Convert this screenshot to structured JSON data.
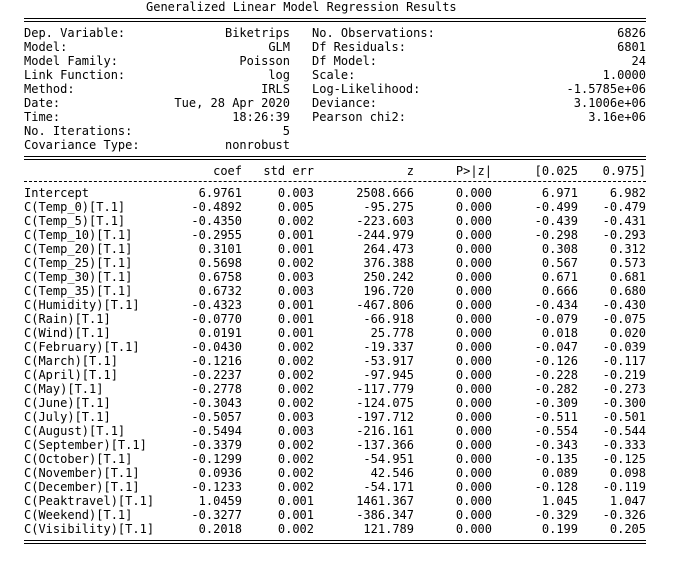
{
  "title": "Generalized Linear Model Regression Results",
  "summary": [
    {
      "left_label": "Dep. Variable:",
      "left_value": "Biketrips",
      "right_label": "No. Observations:",
      "right_value": "6826"
    },
    {
      "left_label": "Model:",
      "left_value": "GLM",
      "right_label": "Df Residuals:",
      "right_value": "6801"
    },
    {
      "left_label": "Model Family:",
      "left_value": "Poisson",
      "right_label": "Df Model:",
      "right_value": "24"
    },
    {
      "left_label": "Link Function:",
      "left_value": "log",
      "right_label": "Scale:",
      "right_value": "1.0000"
    },
    {
      "left_label": "Method:",
      "left_value": "IRLS",
      "right_label": "Log-Likelihood:",
      "right_value": "-1.5785e+06"
    },
    {
      "left_label": "Date:",
      "left_value": "Tue, 28 Apr 2020",
      "right_label": "Deviance:",
      "right_value": "3.1006e+06"
    },
    {
      "left_label": "Time:",
      "left_value": "18:26:39",
      "right_label": "Pearson chi2:",
      "right_value": "3.16e+06"
    },
    {
      "left_label": "No. Iterations:",
      "left_value": "5",
      "right_label": "",
      "right_value": ""
    },
    {
      "left_label": "Covariance Type:",
      "left_value": "nonrobust",
      "right_label": "",
      "right_value": ""
    }
  ],
  "coef_headers": {
    "name": "",
    "coef": "coef",
    "se": "std err",
    "z": "z",
    "p": "P>|z|",
    "lo": "[0.025",
    "hi": "0.975]"
  },
  "coefficients": [
    {
      "name": "Intercept",
      "coef": "6.9761",
      "se": "0.003",
      "z": "2508.666",
      "p": "0.000",
      "lo": "6.971",
      "hi": "6.982"
    },
    {
      "name": "C(Temp_0)[T.1]",
      "coef": "-0.4892",
      "se": "0.005",
      "z": "-95.275",
      "p": "0.000",
      "lo": "-0.499",
      "hi": "-0.479"
    },
    {
      "name": "C(Temp_5)[T.1]",
      "coef": "-0.4350",
      "se": "0.002",
      "z": "-223.603",
      "p": "0.000",
      "lo": "-0.439",
      "hi": "-0.431"
    },
    {
      "name": "C(Temp_10)[T.1]",
      "coef": "-0.2955",
      "se": "0.001",
      "z": "-244.979",
      "p": "0.000",
      "lo": "-0.298",
      "hi": "-0.293"
    },
    {
      "name": "C(Temp_20)[T.1]",
      "coef": "0.3101",
      "se": "0.001",
      "z": "264.473",
      "p": "0.000",
      "lo": "0.308",
      "hi": "0.312"
    },
    {
      "name": "C(Temp_25)[T.1]",
      "coef": "0.5698",
      "se": "0.002",
      "z": "376.388",
      "p": "0.000",
      "lo": "0.567",
      "hi": "0.573"
    },
    {
      "name": "C(Temp_30)[T.1]",
      "coef": "0.6758",
      "se": "0.003",
      "z": "250.242",
      "p": "0.000",
      "lo": "0.671",
      "hi": "0.681"
    },
    {
      "name": "C(Temp_35)[T.1]",
      "coef": "0.6732",
      "se": "0.003",
      "z": "196.720",
      "p": "0.000",
      "lo": "0.666",
      "hi": "0.680"
    },
    {
      "name": "C(Humidity)[T.1]",
      "coef": "-0.4323",
      "se": "0.001",
      "z": "-467.806",
      "p": "0.000",
      "lo": "-0.434",
      "hi": "-0.430"
    },
    {
      "name": "C(Rain)[T.1]",
      "coef": "-0.0770",
      "se": "0.001",
      "z": "-66.918",
      "p": "0.000",
      "lo": "-0.079",
      "hi": "-0.075"
    },
    {
      "name": "C(Wind)[T.1]",
      "coef": "0.0191",
      "se": "0.001",
      "z": "25.778",
      "p": "0.000",
      "lo": "0.018",
      "hi": "0.020"
    },
    {
      "name": "C(February)[T.1]",
      "coef": "-0.0430",
      "se": "0.002",
      "z": "-19.337",
      "p": "0.000",
      "lo": "-0.047",
      "hi": "-0.039"
    },
    {
      "name": "C(March)[T.1]",
      "coef": "-0.1216",
      "se": "0.002",
      "z": "-53.917",
      "p": "0.000",
      "lo": "-0.126",
      "hi": "-0.117"
    },
    {
      "name": "C(April)[T.1]",
      "coef": "-0.2237",
      "se": "0.002",
      "z": "-97.945",
      "p": "0.000",
      "lo": "-0.228",
      "hi": "-0.219"
    },
    {
      "name": "C(May)[T.1]",
      "coef": "-0.2778",
      "se": "0.002",
      "z": "-117.779",
      "p": "0.000",
      "lo": "-0.282",
      "hi": "-0.273"
    },
    {
      "name": "C(June)[T.1]",
      "coef": "-0.3043",
      "se": "0.002",
      "z": "-124.075",
      "p": "0.000",
      "lo": "-0.309",
      "hi": "-0.300"
    },
    {
      "name": "C(July)[T.1]",
      "coef": "-0.5057",
      "se": "0.003",
      "z": "-197.712",
      "p": "0.000",
      "lo": "-0.511",
      "hi": "-0.501"
    },
    {
      "name": "C(August)[T.1]",
      "coef": "-0.5494",
      "se": "0.003",
      "z": "-216.161",
      "p": "0.000",
      "lo": "-0.554",
      "hi": "-0.544"
    },
    {
      "name": "C(September)[T.1]",
      "coef": "-0.3379",
      "se": "0.002",
      "z": "-137.366",
      "p": "0.000",
      "lo": "-0.343",
      "hi": "-0.333"
    },
    {
      "name": "C(October)[T.1]",
      "coef": "-0.1299",
      "se": "0.002",
      "z": "-54.951",
      "p": "0.000",
      "lo": "-0.135",
      "hi": "-0.125"
    },
    {
      "name": "C(November)[T.1]",
      "coef": "0.0936",
      "se": "0.002",
      "z": "42.546",
      "p": "0.000",
      "lo": "0.089",
      "hi": "0.098"
    },
    {
      "name": "C(December)[T.1]",
      "coef": "-0.1233",
      "se": "0.002",
      "z": "-54.171",
      "p": "0.000",
      "lo": "-0.128",
      "hi": "-0.119"
    },
    {
      "name": "C(Peaktravel)[T.1]",
      "coef": "1.0459",
      "se": "0.001",
      "z": "1461.367",
      "p": "0.000",
      "lo": "1.045",
      "hi": "1.047"
    },
    {
      "name": "C(Weekend)[T.1]",
      "coef": "-0.3277",
      "se": "0.001",
      "z": "-386.347",
      "p": "0.000",
      "lo": "-0.329",
      "hi": "-0.326"
    },
    {
      "name": "C(Visibility)[T.1]",
      "coef": "0.2018",
      "se": "0.002",
      "z": "121.789",
      "p": "0.000",
      "lo": "0.199",
      "hi": "0.205"
    }
  ]
}
